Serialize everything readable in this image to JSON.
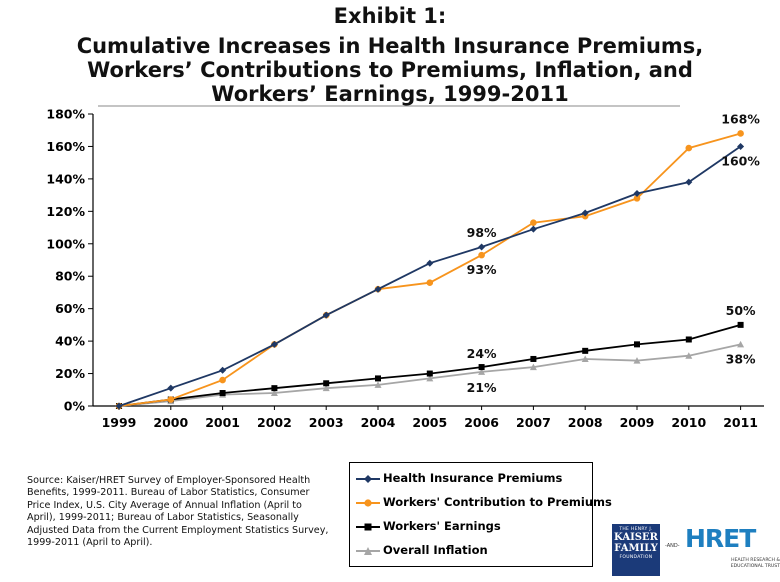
{
  "title": {
    "line1": "Exhibit 1:",
    "line2": "Cumulative Increases in Health Insurance Premiums,",
    "line3": "Workers’ Contributions to Premiums, Inflation, and",
    "line4": "Workers’ Earnings, 1999-2011"
  },
  "chart_data": {
    "type": "line",
    "title": "Cumulative Increases in Health Insurance Premiums, Workers’ Contributions to Premiums, Inflation, and Workers’ Earnings, 1999-2011",
    "xlabel": "",
    "ylabel": "",
    "x": [
      "1999",
      "2000",
      "2001",
      "2002",
      "2003",
      "2004",
      "2005",
      "2006",
      "2007",
      "2008",
      "2009",
      "2010",
      "2011"
    ],
    "ylim": [
      0,
      180
    ],
    "yticks": [
      0,
      20,
      40,
      60,
      80,
      100,
      120,
      140,
      160,
      180
    ],
    "ytick_labels": [
      "0%",
      "20%",
      "40%",
      "60%",
      "80%",
      "100%",
      "120%",
      "140%",
      "160%",
      "180%"
    ],
    "grid": false,
    "legend_position": "bottom-center",
    "series": [
      {
        "name": "Health Insurance Premiums",
        "color": "#1f3864",
        "marker": "diamond",
        "values": [
          0,
          11,
          22,
          38,
          56,
          72,
          88,
          98,
          109,
          119,
          131,
          138,
          160
        ]
      },
      {
        "name": "Workers' Contribution to Premiums",
        "color": "#f7941d",
        "marker": "circle",
        "values": [
          0,
          4,
          16,
          38,
          56,
          72,
          76,
          93,
          113,
          117,
          128,
          159,
          168
        ]
      },
      {
        "name": "Workers' Earnings",
        "color": "#000000",
        "marker": "square",
        "values": [
          0,
          4,
          8,
          11,
          14,
          17,
          20,
          24,
          29,
          34,
          38,
          41,
          50
        ]
      },
      {
        "name": "Overall Inflation",
        "color": "#a6a6a6",
        "marker": "triangle",
        "values": [
          0,
          3,
          7,
          8,
          11,
          13,
          17,
          21,
          24,
          29,
          28,
          31,
          38
        ]
      }
    ],
    "annotations": [
      {
        "text": "168%",
        "x": "2011",
        "y": 168
      },
      {
        "text": "160%",
        "x": "2011",
        "y": 160
      },
      {
        "text": "98%",
        "x": "2006",
        "y": 98
      },
      {
        "text": "93%",
        "x": "2006",
        "y": 93
      },
      {
        "text": "50%",
        "x": "2011",
        "y": 50
      },
      {
        "text": "38%",
        "x": "2011",
        "y": 38
      },
      {
        "text": "24%",
        "x": "2006",
        "y": 24
      },
      {
        "text": "21%",
        "x": "2006",
        "y": 21
      }
    ]
  },
  "source": "Source:  Kaiser/HRET Survey of Employer-Sponsored Health Benefits, 1999-2011.  Bureau of Labor Statistics, Consumer Price Index, U.S. City Average of Annual Inflation (April to April), 1999-2011; Bureau of Labor Statistics, Seasonally Adjusted Data from the Current Employment Statistics Survey, 1999-2011 (April to April).",
  "logos": {
    "kff_top": "THE HENRY J.",
    "kff_name1": "KAISER",
    "kff_name2": "FAMILY",
    "kff_bottom": "FOUNDATION",
    "and": "-AND-",
    "hret": "HRET",
    "hret_sub": "HEALTH RESEARCH & EDUCATIONAL TRUST"
  }
}
